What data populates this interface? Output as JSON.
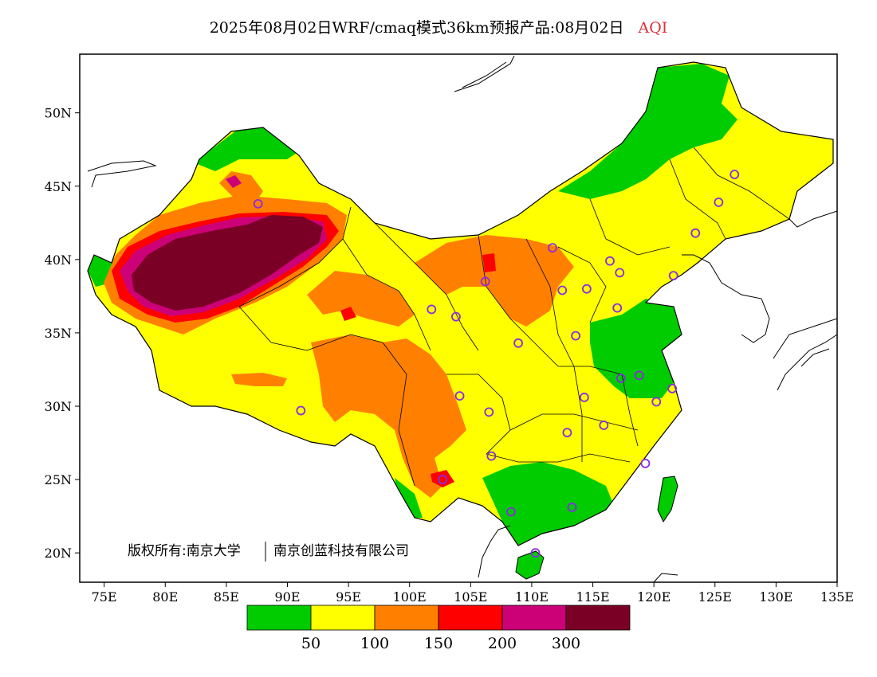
{
  "title": {
    "main": "2025年08月02日WRF/cmaq模式36km预报产品:08月02日",
    "variable": "AQI"
  },
  "axes": {
    "x_ticks": [
      "75E",
      "80E",
      "85E",
      "90E",
      "95E",
      "100E",
      "105E",
      "110E",
      "115E",
      "120E",
      "125E",
      "130E",
      "135E"
    ],
    "y_ticks": [
      "50N",
      "45N",
      "40N",
      "35N",
      "30N",
      "25N",
      "20N"
    ],
    "lon_range": [
      73,
      135
    ],
    "lat_range": [
      18,
      54
    ]
  },
  "copyright": {
    "left": "版权所有:南京大学",
    "right": "南京创蓝科技有限公司"
  },
  "legend": {
    "colors": [
      "#00cc00",
      "#ffff00",
      "#ff8000",
      "#ff0000",
      "#cc0077",
      "#7a0025"
    ],
    "labels": [
      "50",
      "100",
      "150",
      "200",
      "300"
    ]
  },
  "colors": {
    "sea": "#ffffff",
    "station_marker": "#8a2be2"
  },
  "stations": [
    {
      "lon": 126.6,
      "lat": 45.8
    },
    {
      "lon": 125.3,
      "lat": 43.9
    },
    {
      "lon": 123.4,
      "lat": 41.8
    },
    {
      "lon": 121.6,
      "lat": 38.9
    },
    {
      "lon": 117.2,
      "lat": 39.1
    },
    {
      "lon": 116.4,
      "lat": 39.9
    },
    {
      "lon": 114.5,
      "lat": 38.0
    },
    {
      "lon": 112.5,
      "lat": 37.9
    },
    {
      "lon": 111.7,
      "lat": 40.8
    },
    {
      "lon": 106.2,
      "lat": 38.5
    },
    {
      "lon": 103.8,
      "lat": 36.1
    },
    {
      "lon": 101.8,
      "lat": 36.6
    },
    {
      "lon": 87.6,
      "lat": 43.8
    },
    {
      "lon": 91.1,
      "lat": 29.7
    },
    {
      "lon": 104.1,
      "lat": 30.7
    },
    {
      "lon": 106.5,
      "lat": 29.6
    },
    {
      "lon": 108.9,
      "lat": 34.3
    },
    {
      "lon": 113.6,
      "lat": 34.8
    },
    {
      "lon": 117.0,
      "lat": 36.7
    },
    {
      "lon": 117.3,
      "lat": 31.9
    },
    {
      "lon": 118.8,
      "lat": 32.1
    },
    {
      "lon": 120.2,
      "lat": 30.3
    },
    {
      "lon": 121.5,
      "lat": 31.2
    },
    {
      "lon": 114.3,
      "lat": 30.6
    },
    {
      "lon": 112.9,
      "lat": 28.2
    },
    {
      "lon": 115.9,
      "lat": 28.7
    },
    {
      "lon": 119.3,
      "lat": 26.1
    },
    {
      "lon": 113.3,
      "lat": 23.1
    },
    {
      "lon": 108.3,
      "lat": 22.8
    },
    {
      "lon": 110.3,
      "lat": 20.0
    },
    {
      "lon": 102.7,
      "lat": 25.0
    },
    {
      "lon": 106.7,
      "lat": 26.6
    }
  ]
}
